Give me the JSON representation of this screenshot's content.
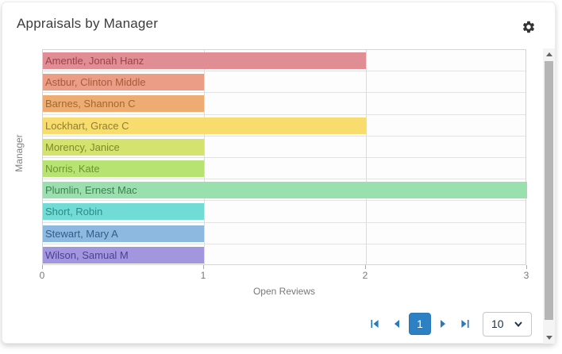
{
  "header": {
    "title": "Appraisals by Manager"
  },
  "chart_data": {
    "type": "bar",
    "orientation": "horizontal",
    "title": "Appraisals by Manager",
    "categories": [
      "Amentle, Jonah Hanz",
      "Astbur, Clinton Middle",
      "Barnes, Shannon C",
      "Lockhart, Grace C",
      "Morency, Janice",
      "Norris, Kate",
      "Plumlin, Ernest Mac",
      "Short, Robin",
      "Stewart, Mary A",
      "Wilson, Samual M"
    ],
    "values": [
      2,
      1,
      1,
      2,
      1,
      1,
      3,
      1,
      1,
      1
    ],
    "bar_colors": [
      "#e08d93",
      "#eb9e85",
      "#eeab72",
      "#f8dd6e",
      "#d4e26e",
      "#b6e371",
      "#9adfae",
      "#70dcd5",
      "#8db8e0",
      "#a296de"
    ],
    "label_colors": [
      "#9c434a",
      "#a85a3a",
      "#a06a2e",
      "#8f7f2e",
      "#7b8a2c",
      "#6d9530",
      "#417f56",
      "#2d8b85",
      "#315d88",
      "#4c3f95"
    ],
    "xlabel": "Open Reviews",
    "ylabel": "Manager",
    "xlim": [
      0,
      3
    ],
    "xticks": [
      "0",
      "1",
      "2",
      "3"
    ],
    "grid": true,
    "legend": false
  },
  "pagination": {
    "current_page": "1",
    "page_size": "10"
  },
  "colors": {
    "accent_blue": "#2a7abf",
    "active_page_bg": "#2d80c3",
    "title_text": "#3c3c3c",
    "axis_text": "#787878"
  }
}
